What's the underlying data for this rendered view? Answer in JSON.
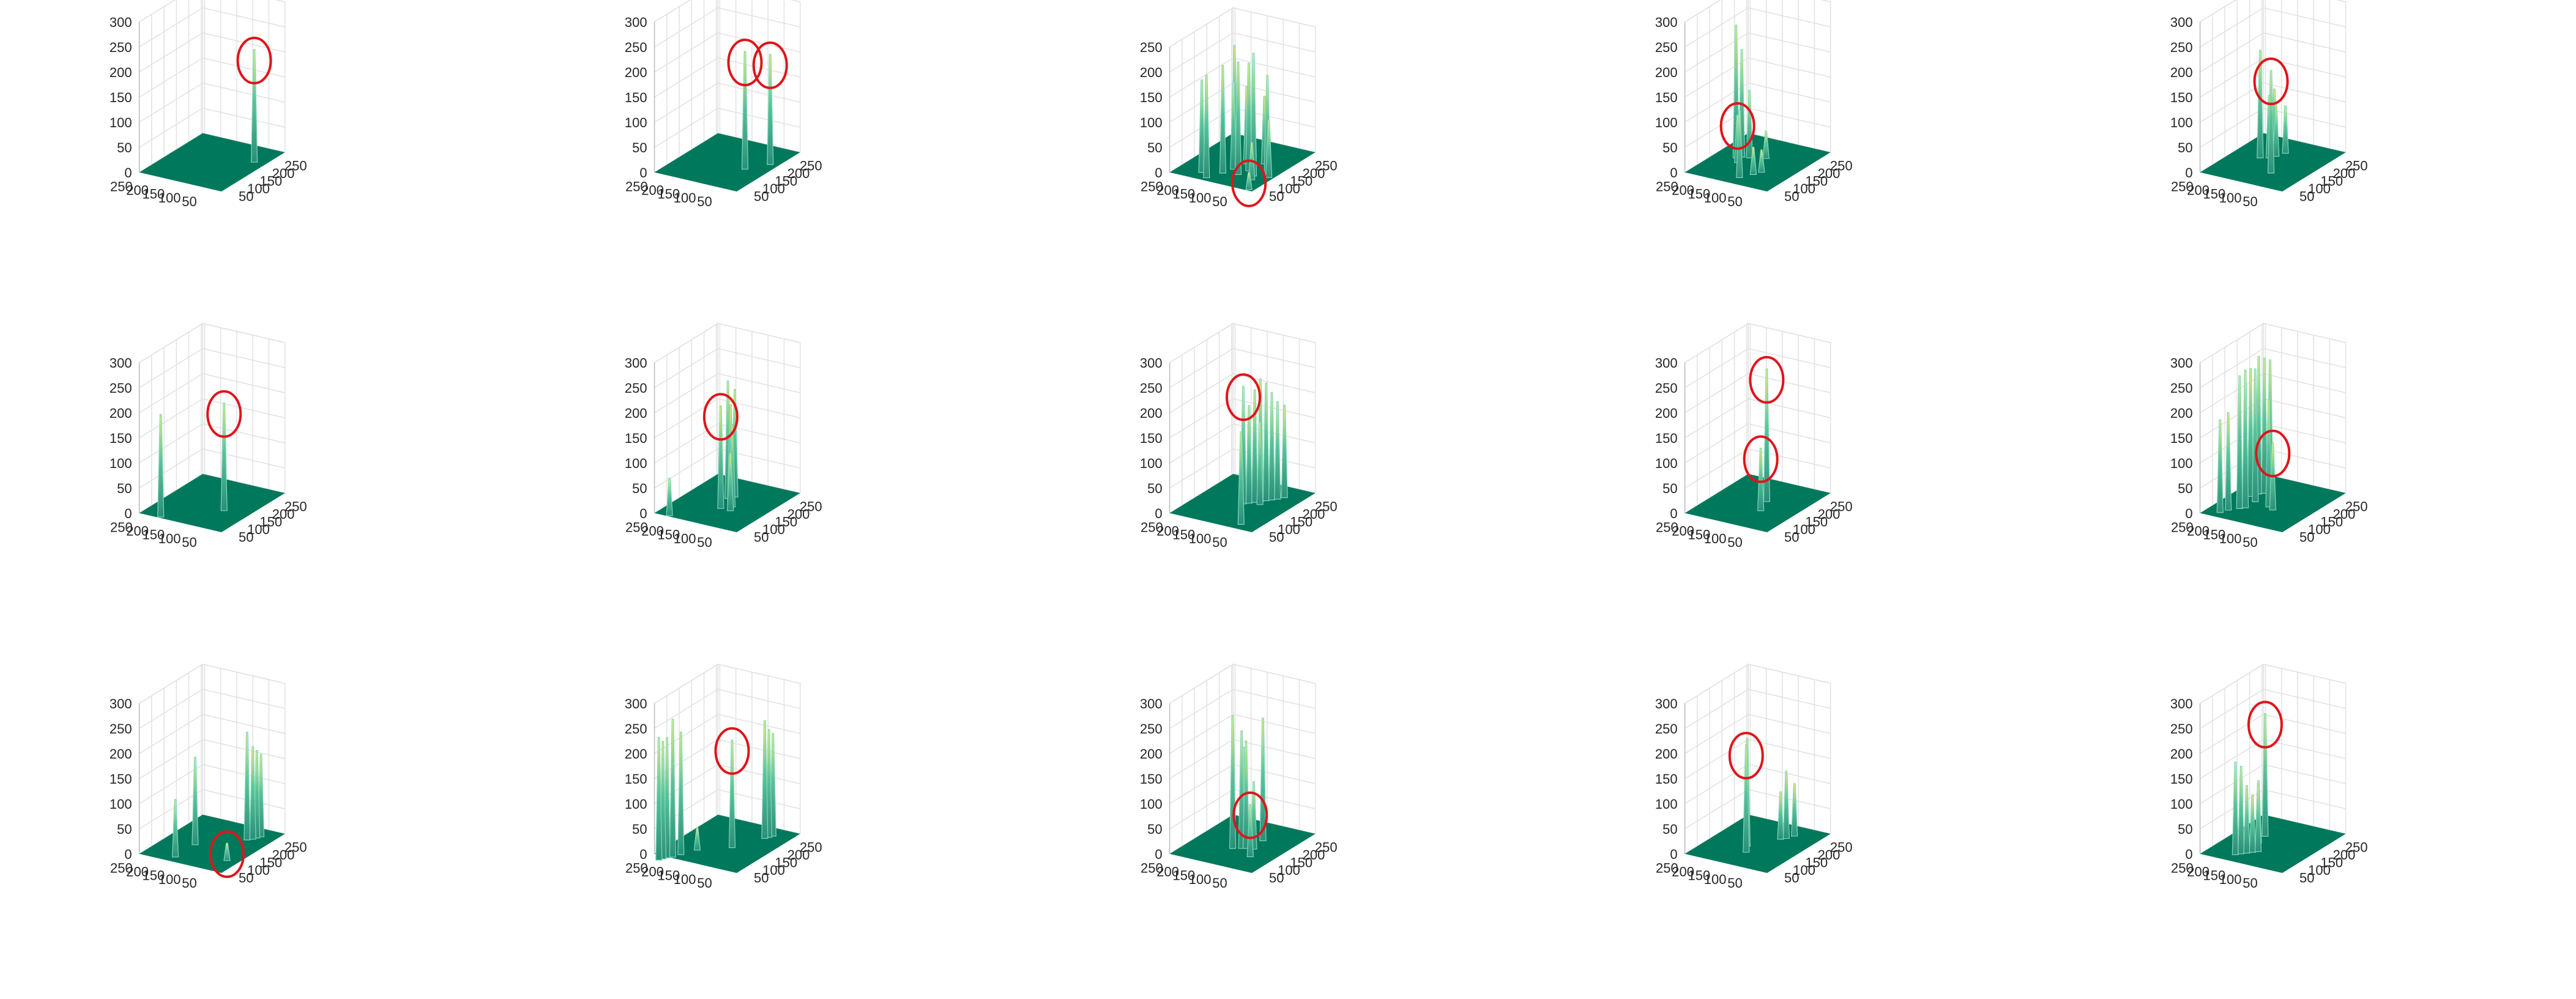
{
  "figure": {
    "rows": 3,
    "cols": 5,
    "colors": {
      "floor": "#00785c",
      "spike_base": "#2a8f7a",
      "spike_top": "#e8ef7e",
      "highlight": "#e0141b",
      "grid": "#e1e1e1"
    }
  },
  "chart_data": [
    {
      "type": "surface3d",
      "panel": "r1c1",
      "zticks": [
        0,
        50,
        100,
        150,
        200,
        250,
        300
      ],
      "zlim": [
        0,
        300
      ],
      "xticks": [
        50,
        100,
        150,
        200,
        250
      ],
      "yticks": [
        50,
        100,
        150,
        200,
        250
      ],
      "spikes": [
        {
          "x": 210,
          "y": 60,
          "z": 210,
          "highlighted": true
        }
      ]
    },
    {
      "type": "surface3d",
      "panel": "r1c2",
      "zticks": [
        0,
        50,
        100,
        150,
        200,
        250,
        300
      ],
      "zlim": [
        0,
        300
      ],
      "xticks": [
        50,
        100,
        150,
        200,
        250
      ],
      "yticks": [
        50,
        100,
        150,
        200,
        250
      ],
      "spikes": [
        {
          "x": 150,
          "y": 90,
          "z": 220,
          "highlighted": true
        },
        {
          "x": 200,
          "y": 50,
          "z": 205,
          "highlighted": true
        }
      ]
    },
    {
      "type": "surface3d",
      "panel": "r1c3",
      "zticks": [
        0,
        50,
        100,
        150,
        200,
        250
      ],
      "zlim": [
        0,
        250
      ],
      "xticks": [
        50,
        100,
        150,
        200,
        250
      ],
      "yticks": [
        50,
        100,
        150,
        200,
        250
      ],
      "spikes": [
        {
          "x": 40,
          "y": 40,
          "z": 20,
          "highlighted": true
        },
        {
          "x": 50,
          "y": 180,
          "z": 190
        },
        {
          "x": 70,
          "y": 210,
          "z": 170
        },
        {
          "x": 90,
          "y": 160,
          "z": 200
        },
        {
          "x": 100,
          "y": 120,
          "z": 210
        },
        {
          "x": 110,
          "y": 80,
          "z": 230
        },
        {
          "x": 120,
          "y": 150,
          "z": 160
        },
        {
          "x": 130,
          "y": 110,
          "z": 200
        },
        {
          "x": 140,
          "y": 60,
          "z": 180
        },
        {
          "x": 150,
          "y": 170,
          "z": 220
        },
        {
          "x": 160,
          "y": 140,
          "z": 140
        },
        {
          "x": 180,
          "y": 100,
          "z": 120
        },
        {
          "x": 200,
          "y": 150,
          "z": 170
        },
        {
          "x": 120,
          "y": 40,
          "z": 100
        },
        {
          "x": 90,
          "y": 70,
          "z": 60
        }
      ]
    },
    {
      "type": "surface3d",
      "panel": "r1c4",
      "zticks": [
        0,
        50,
        100,
        150,
        200,
        250,
        300
      ],
      "zlim": [
        0,
        300
      ],
      "xticks": [
        50,
        100,
        150,
        200,
        250
      ],
      "yticks": [
        50,
        100,
        150,
        200,
        250
      ],
      "spikes": [
        {
          "x": 140,
          "y": 200,
          "z": 80,
          "highlighted": true
        },
        {
          "x": 160,
          "y": 220,
          "z": 250
        },
        {
          "x": 170,
          "y": 210,
          "z": 200
        },
        {
          "x": 175,
          "y": 190,
          "z": 120
        },
        {
          "x": 70,
          "y": 140,
          "z": 120
        },
        {
          "x": 100,
          "y": 120,
          "z": 40
        },
        {
          "x": 120,
          "y": 110,
          "z": 30
        },
        {
          "x": 190,
          "y": 150,
          "z": 40
        }
      ]
    },
    {
      "type": "surface3d",
      "panel": "r1c5",
      "zticks": [
        0,
        50,
        100,
        150,
        200,
        250,
        300
      ],
      "zlim": [
        0,
        300
      ],
      "xticks": [
        50,
        100,
        150,
        200,
        250
      ],
      "yticks": [
        50,
        100,
        150,
        200,
        250
      ],
      "spikes": [
        {
          "x": 110,
          "y": 120,
          "z": 190,
          "highlighted": true
        },
        {
          "x": 170,
          "y": 200,
          "z": 200
        },
        {
          "x": 180,
          "y": 180,
          "z": 110
        },
        {
          "x": 195,
          "y": 170,
          "z": 90
        },
        {
          "x": 220,
          "y": 160,
          "z": 80
        },
        {
          "x": 240,
          "y": 210,
          "z": 100
        }
      ]
    },
    {
      "type": "surface3d",
      "panel": "r2c1",
      "zticks": [
        0,
        50,
        100,
        150,
        200,
        250,
        300
      ],
      "zlim": [
        0,
        300
      ],
      "xticks": [
        50,
        100,
        150,
        200,
        250
      ],
      "yticks": [
        50,
        100,
        150,
        200,
        250
      ],
      "spikes": [
        {
          "x": 140,
          "y": 100,
          "z": 200,
          "highlighted": true
        },
        {
          "x": 40,
          "y": 220,
          "z": 190
        }
      ]
    },
    {
      "type": "surface3d",
      "panel": "r2c2",
      "zticks": [
        0,
        50,
        100,
        150,
        200,
        250,
        300
      ],
      "zlim": [
        0,
        300
      ],
      "xticks": [
        50,
        100,
        150,
        200,
        250
      ],
      "yticks": [
        50,
        100,
        150,
        200,
        250
      ],
      "spikes": [
        {
          "x": 130,
          "y": 150,
          "z": 190,
          "highlighted": true
        },
        {
          "x": 40,
          "y": 240,
          "z": 60
        },
        {
          "x": 150,
          "y": 130,
          "z": 150
        },
        {
          "x": 170,
          "y": 150,
          "z": 180
        },
        {
          "x": 185,
          "y": 170,
          "z": 220
        },
        {
          "x": 200,
          "y": 160,
          "z": 200
        },
        {
          "x": 130,
          "y": 120,
          "z": 100
        }
      ]
    },
    {
      "type": "surface3d",
      "panel": "r2c3",
      "zticks": [
        0,
        50,
        100,
        150,
        200,
        250,
        300
      ],
      "zlim": [
        0,
        300
      ],
      "xticks": [
        50,
        100,
        150,
        200,
        250
      ],
      "yticks": [
        50,
        100,
        150,
        200,
        250
      ],
      "spikes": [
        {
          "x": 160,
          "y": 150,
          "z": 220,
          "highlighted": true
        },
        {
          "x": 60,
          "y": 80,
          "z": 170
        },
        {
          "x": 170,
          "y": 140,
          "z": 180
        },
        {
          "x": 180,
          "y": 130,
          "z": 210
        },
        {
          "x": 190,
          "y": 120,
          "z": 230
        },
        {
          "x": 200,
          "y": 110,
          "z": 220
        },
        {
          "x": 210,
          "y": 100,
          "z": 200
        },
        {
          "x": 220,
          "y": 90,
          "z": 180
        },
        {
          "x": 235,
          "y": 80,
          "z": 170
        },
        {
          "x": 175,
          "y": 110,
          "z": 150
        }
      ]
    },
    {
      "type": "surface3d",
      "panel": "r2c4",
      "zticks": [
        0,
        50,
        100,
        150,
        200,
        250,
        300
      ],
      "zlim": [
        0,
        300
      ],
      "xticks": [
        50,
        100,
        150,
        200,
        250
      ],
      "yticks": [
        50,
        100,
        150,
        200,
        250
      ],
      "spikes": [
        {
          "x": 130,
          "y": 120,
          "z": 110,
          "highlighted": true
        },
        {
          "x": 180,
          "y": 140,
          "z": 250,
          "highlighted": true
        }
      ]
    },
    {
      "type": "surface3d",
      "panel": "r2c5",
      "zticks": [
        0,
        50,
        100,
        150,
        200,
        250,
        300
      ],
      "zlim": [
        0,
        300
      ],
      "xticks": [
        50,
        100,
        150,
        200,
        250
      ],
      "yticks": [
        50,
        100,
        150,
        200,
        250
      ],
      "spikes": [
        {
          "x": 130,
          "y": 130,
          "z": 120,
          "highlighted": true
        },
        {
          "x": 60,
          "y": 240,
          "z": 170
        },
        {
          "x": 80,
          "y": 230,
          "z": 180
        },
        {
          "x": 100,
          "y": 210,
          "z": 250
        },
        {
          "x": 110,
          "y": 200,
          "z": 260
        },
        {
          "x": 150,
          "y": 200,
          "z": 250
        },
        {
          "x": 170,
          "y": 230,
          "z": 240
        },
        {
          "x": 190,
          "y": 220,
          "z": 260
        },
        {
          "x": 200,
          "y": 210,
          "z": 255
        },
        {
          "x": 210,
          "y": 200,
          "z": 250
        },
        {
          "x": 140,
          "y": 150,
          "z": 200
        }
      ]
    },
    {
      "type": "surface3d",
      "panel": "r3c1",
      "zticks": [
        0,
        50,
        100,
        150,
        200,
        250,
        300
      ],
      "zlim": [
        0,
        300
      ],
      "xticks": [
        50,
        100,
        150,
        200,
        250
      ],
      "yticks": [
        50,
        100,
        150,
        200,
        250
      ],
      "spikes": [
        {
          "x": 100,
          "y": 60,
          "z": 20,
          "highlighted": true
        },
        {
          "x": 60,
          "y": 190,
          "z": 100
        },
        {
          "x": 140,
          "y": 190,
          "z": 160
        },
        {
          "x": 220,
          "y": 90,
          "z": 200
        },
        {
          "x": 230,
          "y": 80,
          "z": 170
        },
        {
          "x": 240,
          "y": 75,
          "z": 160
        },
        {
          "x": 250,
          "y": 70,
          "z": 150
        }
      ]
    },
    {
      "type": "surface3d",
      "panel": "r3c2",
      "zticks": [
        0,
        50,
        100,
        150,
        200,
        250,
        300
      ],
      "zlim": [
        0,
        300
      ],
      "xticks": [
        50,
        100,
        150,
        200,
        250
      ],
      "yticks": [
        50,
        100,
        150,
        200,
        250
      ],
      "spikes": [
        {
          "x": 150,
          "y": 130,
          "z": 200,
          "highlighted": true
        },
        {
          "x": 10,
          "y": 250,
          "z": 230
        },
        {
          "x": 20,
          "y": 245,
          "z": 220
        },
        {
          "x": 30,
          "y": 240,
          "z": 225
        },
        {
          "x": 40,
          "y": 230,
          "z": 260
        },
        {
          "x": 60,
          "y": 220,
          "z": 230
        },
        {
          "x": 230,
          "y": 90,
          "z": 220
        },
        {
          "x": 240,
          "y": 85,
          "z": 200
        },
        {
          "x": 250,
          "y": 80,
          "z": 190
        },
        {
          "x": 100,
          "y": 200,
          "z": 30
        }
      ]
    },
    {
      "type": "surface3d",
      "panel": "r3c3",
      "zticks": [
        0,
        50,
        100,
        150,
        200,
        250,
        300
      ],
      "zlim": [
        0,
        300
      ],
      "xticks": [
        50,
        100,
        150,
        200,
        250
      ],
      "yticks": [
        50,
        100,
        150,
        200,
        250
      ],
      "spikes": [
        {
          "x": 110,
          "y": 90,
          "z": 90,
          "highlighted": true
        },
        {
          "x": 130,
          "y": 160,
          "z": 250
        },
        {
          "x": 140,
          "y": 140,
          "z": 220
        },
        {
          "x": 145,
          "y": 130,
          "z": 200
        },
        {
          "x": 160,
          "y": 150,
          "z": 180
        },
        {
          "x": 200,
          "y": 120,
          "z": 230
        },
        {
          "x": 150,
          "y": 110,
          "z": 120
        }
      ]
    },
    {
      "type": "surface3d",
      "panel": "r3c4",
      "zticks": [
        0,
        50,
        100,
        150,
        200,
        250,
        300
      ],
      "zlim": [
        0,
        300
      ],
      "xticks": [
        50,
        100,
        150,
        200,
        250
      ],
      "yticks": [
        50,
        100,
        150,
        200,
        250
      ],
      "spikes": [
        {
          "x": 110,
          "y": 150,
          "z": 200,
          "highlighted": true
        },
        {
          "x": 140,
          "y": 170,
          "z": 200
        },
        {
          "x": 210,
          "y": 120,
          "z": 80
        },
        {
          "x": 220,
          "y": 110,
          "z": 120
        },
        {
          "x": 240,
          "y": 100,
          "z": 90
        }
      ]
    },
    {
      "type": "surface3d",
      "panel": "r3c5",
      "zticks": [
        0,
        50,
        100,
        150,
        200,
        250,
        300
      ],
      "zlim": [
        0,
        300
      ],
      "xticks": [
        50,
        100,
        150,
        200,
        250
      ],
      "yticks": [
        50,
        100,
        150,
        200,
        250
      ],
      "spikes": [
        {
          "x": 190,
          "y": 200,
          "z": 230,
          "highlighted": true
        },
        {
          "x": 70,
          "y": 200,
          "z": 170
        },
        {
          "x": 80,
          "y": 190,
          "z": 160
        },
        {
          "x": 90,
          "y": 180,
          "z": 120
        },
        {
          "x": 100,
          "y": 170,
          "z": 100
        },
        {
          "x": 110,
          "y": 160,
          "z": 120
        },
        {
          "x": 150,
          "y": 190,
          "z": 110
        }
      ]
    }
  ]
}
